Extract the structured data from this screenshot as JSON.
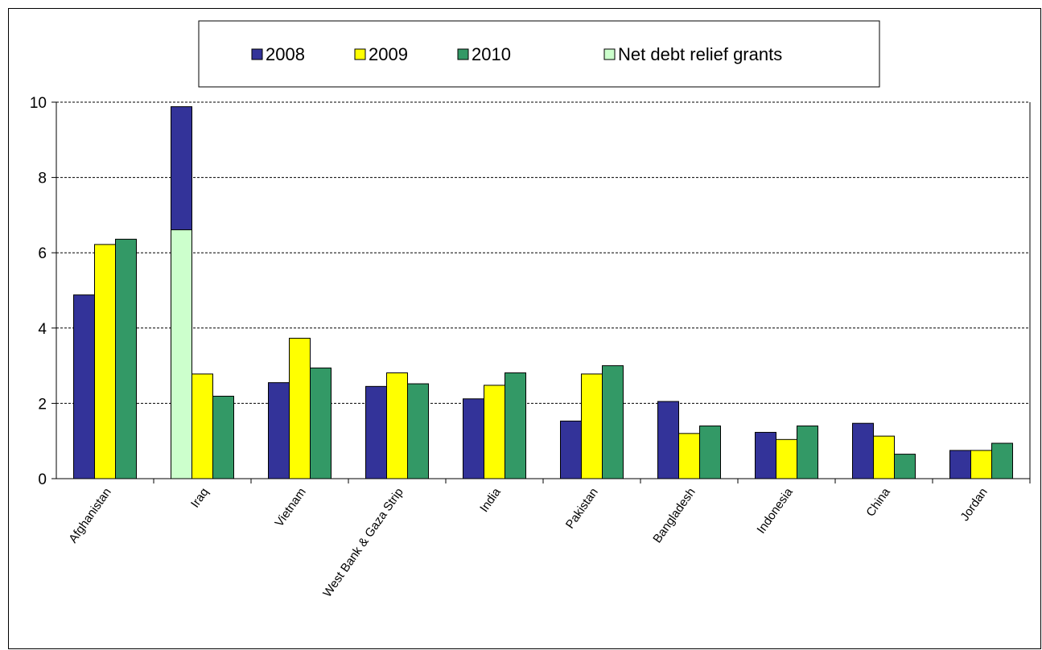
{
  "chart_data": {
    "type": "bar",
    "categories": [
      "Afghanistan",
      "Iraq",
      "Vietnam",
      "West Bank & Gaza Strip",
      "India",
      "Pakistan",
      "Bangladesh",
      "Indonesia",
      "China",
      "Jordan"
    ],
    "series": [
      {
        "name": "2008",
        "color": "#333399",
        "values": [
          4.88,
          9.88,
          2.55,
          2.45,
          2.12,
          1.53,
          2.05,
          1.23,
          1.47,
          0.75
        ]
      },
      {
        "name": "2009",
        "color": "#FFFF00",
        "values": [
          6.22,
          2.78,
          3.73,
          2.81,
          2.48,
          2.78,
          1.2,
          1.04,
          1.13,
          0.75
        ]
      },
      {
        "name": "2010",
        "color": "#339966",
        "values": [
          6.36,
          2.19,
          2.94,
          2.52,
          2.81,
          3.0,
          1.4,
          1.4,
          0.65,
          0.94
        ]
      },
      {
        "name": "Net debt relief grants",
        "color": "#CCFFCC",
        "values": [
          0,
          6.61,
          0,
          0,
          0,
          0,
          0,
          0,
          0,
          0
        ],
        "stacked_on": "2008"
      }
    ],
    "yticks": [
      "0",
      "2",
      "4",
      "6",
      "8",
      "10"
    ],
    "ylim": [
      0,
      10
    ],
    "grid": true,
    "legend_position": "top"
  }
}
